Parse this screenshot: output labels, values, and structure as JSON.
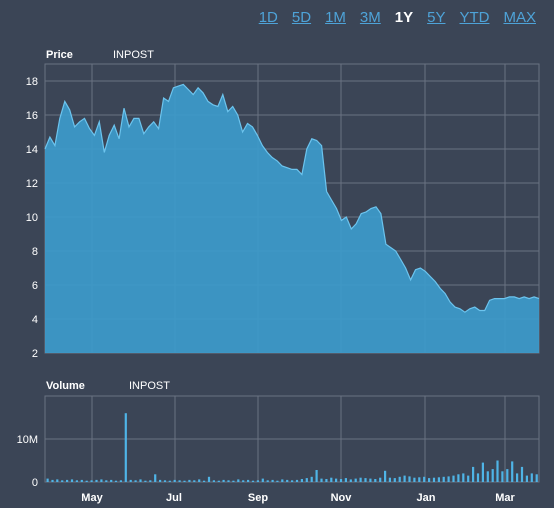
{
  "range_buttons": [
    {
      "label": "1D",
      "active": false
    },
    {
      "label": "5D",
      "active": false
    },
    {
      "label": "1M",
      "active": false
    },
    {
      "label": "3M",
      "active": false
    },
    {
      "label": "1Y",
      "active": true
    },
    {
      "label": "5Y",
      "active": false
    },
    {
      "label": "YTD",
      "active": false
    },
    {
      "label": "MAX",
      "active": false
    }
  ],
  "colors": {
    "background": "#3b4556",
    "area_fill": "#3d9bcb",
    "area_line": "#6cc4ee",
    "volume_bar": "#4fb4e6",
    "grid": "#6a7282"
  },
  "chart_data": [
    {
      "type": "area",
      "title": "Price",
      "symbol": "INPOST",
      "ylim": [
        2,
        19
      ],
      "yticks": [
        2,
        4,
        6,
        8,
        10,
        12,
        14,
        16,
        18
      ],
      "xticks": [
        "May",
        "Jul",
        "Sep",
        "Nov",
        "Jan",
        "Mar"
      ],
      "x": [
        0,
        1,
        2,
        3,
        4,
        5,
        6,
        7,
        8,
        9,
        10,
        11,
        12,
        13,
        14,
        15,
        16,
        17,
        18,
        19,
        20,
        21,
        22,
        23,
        24,
        25,
        26,
        27,
        28,
        29,
        30,
        31,
        32,
        33,
        34,
        35,
        36,
        37,
        38,
        39,
        40,
        41,
        42,
        43,
        44,
        45,
        46,
        47,
        48,
        49,
        50,
        51,
        52,
        53,
        54,
        55,
        56,
        57,
        58,
        59,
        60,
        61,
        62,
        63,
        64,
        65,
        66,
        67,
        68,
        69,
        70,
        71,
        72,
        73,
        74,
        75,
        76,
        77,
        78,
        79,
        80,
        81,
        82,
        83,
        84,
        85,
        86,
        87,
        88,
        89,
        90,
        91,
        92,
        93,
        94,
        95,
        96,
        97,
        98,
        99,
        100
      ],
      "values": [
        14.0,
        14.7,
        14.2,
        15.8,
        16.8,
        16.3,
        15.3,
        15.6,
        15.8,
        15.2,
        14.8,
        15.6,
        13.8,
        14.8,
        15.4,
        14.6,
        16.4,
        15.3,
        15.8,
        15.8,
        14.9,
        15.3,
        15.6,
        15.2,
        17.0,
        16.8,
        17.6,
        17.7,
        17.8,
        17.5,
        17.2,
        17.6,
        17.3,
        16.8,
        16.6,
        16.5,
        17.2,
        16.2,
        16.5,
        16.0,
        15.0,
        15.5,
        15.3,
        14.8,
        14.2,
        13.8,
        13.5,
        13.3,
        13.0,
        12.9,
        12.8,
        12.8,
        12.5,
        14.0,
        14.6,
        14.5,
        14.2,
        11.5,
        11.0,
        10.5,
        9.8,
        10.0,
        9.3,
        9.6,
        10.2,
        10.3,
        10.5,
        10.6,
        10.2,
        8.4,
        8.2,
        8.0,
        7.5,
        7.0,
        6.3,
        6.9,
        7.0,
        6.8,
        6.5,
        6.2,
        5.8,
        5.5,
        5.0,
        4.7,
        4.6,
        4.4,
        4.6,
        4.7,
        4.5,
        4.5,
        5.1,
        5.2,
        5.2,
        5.2,
        5.3,
        5.3,
        5.2,
        5.3,
        5.2,
        5.3,
        5.2
      ]
    },
    {
      "type": "bar",
      "title": "Volume",
      "symbol": "INPOST",
      "ylim": [
        0,
        20
      ],
      "yticks": [
        {
          "value": 0,
          "label": "0"
        },
        {
          "value": 10,
          "label": "10M"
        }
      ],
      "xticks": [
        "May",
        "Jul",
        "Sep",
        "Nov",
        "Jan",
        "Mar"
      ],
      "values": [
        0.8,
        0.5,
        0.6,
        0.4,
        0.5,
        0.6,
        0.4,
        0.5,
        0.3,
        0.4,
        0.5,
        0.6,
        0.4,
        0.5,
        0.3,
        0.4,
        16.0,
        0.5,
        0.4,
        0.6,
        0.3,
        0.4,
        1.8,
        0.5,
        0.4,
        0.3,
        0.5,
        0.4,
        0.3,
        0.5,
        0.4,
        0.6,
        0.3,
        1.2,
        0.4,
        0.3,
        0.5,
        0.4,
        0.3,
        0.6,
        0.4,
        0.5,
        0.3,
        0.4,
        0.8,
        0.4,
        0.5,
        0.3,
        0.6,
        0.5,
        0.4,
        0.5,
        0.7,
        0.9,
        1.2,
        2.8,
        0.8,
        0.7,
        1.0,
        0.8,
        0.7,
        0.9,
        0.6,
        0.8,
        1.0,
        0.9,
        0.8,
        0.7,
        1.0,
        2.6,
        1.0,
        0.9,
        1.2,
        1.5,
        1.3,
        1.0,
        1.1,
        1.2,
        0.9,
        1.0,
        1.1,
        1.2,
        1.3,
        1.5,
        1.8,
        2.0,
        1.5,
        3.5,
        2.0,
        4.5,
        2.5,
        3.0,
        5.0,
        2.5,
        3.0,
        4.8,
        2.0,
        3.5,
        1.5,
        2.0,
        1.8
      ]
    }
  ]
}
